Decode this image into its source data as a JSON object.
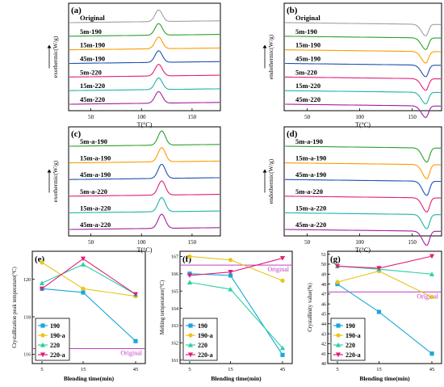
{
  "figure": {
    "panels": [
      {
        "id": "a",
        "label": "(a)",
        "kind": "curves",
        "peak": "up",
        "ylabel": "exothermic(W/g)",
        "xlabel": "T(°C)",
        "xticks": [
          50,
          100,
          150
        ],
        "xlim": [
          28,
          178
        ],
        "peak_x": 117,
        "series": [
          {
            "name": "Original",
            "color": "#a0a0a0"
          },
          {
            "name": "5m-190",
            "color": "#2ca02c"
          },
          {
            "name": "15m-190",
            "color": "#ff9a00"
          },
          {
            "name": "45m-190",
            "color": "#1f4fb4"
          },
          {
            "name": "5m-220",
            "color": "#e0207a"
          },
          {
            "name": "15m-220",
            "color": "#20b2aa"
          },
          {
            "name": "45m-220",
            "color": "#a020a0"
          }
        ]
      },
      {
        "id": "b",
        "label": "(b)",
        "kind": "curves",
        "peak": "down",
        "ylabel": "endothermic(W/g)",
        "xlabel": "T(°C)",
        "xticks": [
          50,
          100,
          150
        ],
        "xlim": [
          28,
          178
        ],
        "peak_x": 163,
        "series": [
          {
            "name": "Original",
            "color": "#a0a0a0"
          },
          {
            "name": "5m-190",
            "color": "#2ca02c"
          },
          {
            "name": "15m-190",
            "color": "#ff9a00"
          },
          {
            "name": "45m-190",
            "color": "#1f4fb4"
          },
          {
            "name": "5m-220",
            "color": "#e0207a"
          },
          {
            "name": "15m-220",
            "color": "#20b2aa"
          },
          {
            "name": "45m-220",
            "color": "#a020a0"
          }
        ]
      },
      {
        "id": "c",
        "label": "(c)",
        "kind": "curves",
        "peak": "up",
        "ylabel": "exothermic(W/g)",
        "xlabel": "T(°C)",
        "xticks": [
          50,
          100,
          150
        ],
        "xlim": [
          28,
          178
        ],
        "peak_x": 120,
        "series": [
          {
            "name": "5m-a-190",
            "color": "#2ca02c"
          },
          {
            "name": "15m-a-190",
            "color": "#ff9a00"
          },
          {
            "name": "45m-a-190",
            "color": "#1f4fb4"
          },
          {
            "name": "5m-a-220",
            "color": "#e0207a"
          },
          {
            "name": "15m-a-220",
            "color": "#20b2aa"
          },
          {
            "name": "45m-a-220",
            "color": "#a020a0"
          }
        ]
      },
      {
        "id": "d",
        "label": "(d)",
        "kind": "curves",
        "peak": "down",
        "ylabel": "endothermic(W/g)",
        "xlabel": "T(°C)",
        "xticks": [
          50,
          100,
          150
        ],
        "xlim": [
          28,
          178
        ],
        "peak_x": 164,
        "series": [
          {
            "name": "5m-a-190",
            "color": "#2ca02c"
          },
          {
            "name": "15m-a-190",
            "color": "#ff9a00"
          },
          {
            "name": "45m-a-190",
            "color": "#1f4fb4"
          },
          {
            "name": "5m-a-220",
            "color": "#e0207a"
          },
          {
            "name": "15m-a-220",
            "color": "#20b2aa"
          },
          {
            "name": "45m-a-220",
            "color": "#a020a0"
          }
        ]
      },
      {
        "id": "e",
        "label": "(e)",
        "kind": "lines",
        "ylabel": "Crystallization peak temperature(°C)",
        "xlabel": "Blending time(min)",
        "x": [
          5,
          15,
          45
        ],
        "ylim": [
          115.5,
          121.5
        ],
        "yticks": [
          116,
          118,
          120
        ],
        "reference": {
          "value": 116.3,
          "label": "Original"
        },
        "series": [
          {
            "name": "190",
            "color": "#1aa7d8",
            "marker": "square",
            "values": [
              119.5,
              119.3,
              116.7
            ]
          },
          {
            "name": "190-a",
            "color": "#e6c619",
            "marker": "circle",
            "values": [
              120.9,
              119.5,
              119.1
            ]
          },
          {
            "name": "220",
            "color": "#2bd1a1",
            "marker": "triangle",
            "values": [
              119.8,
              120.8,
              119.2
            ]
          },
          {
            "name": "220-a",
            "color": "#e0207a",
            "marker": "triangle-down",
            "values": [
              119.5,
              121.1,
              119.2
            ]
          }
        ]
      },
      {
        "id": "f",
        "label": "(f)",
        "kind": "lines",
        "ylabel": "Melting temperature(°C)",
        "xlabel": "Blending time(min)",
        "x": [
          5,
          15,
          45
        ],
        "ylim": [
          160.8,
          167.3
        ],
        "yticks": [
          161,
          162,
          163,
          164,
          165,
          166,
          167
        ],
        "reference": {
          "value": 166.5,
          "label": "Original"
        },
        "series": [
          {
            "name": "190",
            "color": "#1aa7d8",
            "marker": "square",
            "values": [
              166.0,
              165.9,
              161.3
            ]
          },
          {
            "name": "190-a",
            "color": "#e6c619",
            "marker": "circle",
            "values": [
              167.0,
              166.8,
              165.6
            ]
          },
          {
            "name": "220",
            "color": "#2bd1a1",
            "marker": "triangle",
            "values": [
              165.5,
              165.1,
              161.7
            ]
          },
          {
            "name": "220-a",
            "color": "#e0207a",
            "marker": "triangle-down",
            "values": [
              165.9,
              166.1,
              166.9
            ]
          }
        ]
      },
      {
        "id": "g",
        "label": "(g)",
        "kind": "lines",
        "ylabel": "Crystallinity value(%)",
        "xlabel": "Blending time(min)",
        "x": [
          5,
          15,
          45
        ],
        "ylim": [
          40,
          51.3
        ],
        "yticks": [
          40,
          41,
          42,
          43,
          44,
          45,
          46,
          47,
          48,
          49,
          50,
          51
        ],
        "reference": {
          "value": 47.2,
          "label": "Original"
        },
        "series": [
          {
            "name": "190",
            "color": "#1aa7d8",
            "marker": "square",
            "values": [
              48.0,
              45.2,
              41.0
            ]
          },
          {
            "name": "190-a",
            "color": "#e6c619",
            "marker": "circle",
            "values": [
              48.2,
              49.3,
              46.7
            ]
          },
          {
            "name": "220",
            "color": "#2bd1a1",
            "marker": "triangle",
            "values": [
              49.8,
              49.5,
              49.0
            ]
          },
          {
            "name": "220-a",
            "color": "#e0207a",
            "marker": "triangle-down",
            "values": [
              49.8,
              49.6,
              50.8
            ]
          }
        ]
      }
    ]
  },
  "chart_data": [
    {
      "type": "line",
      "panel": "(e)",
      "x": [
        5,
        15,
        45
      ],
      "xlabel": "Blending time(min)",
      "ylabel": "Crystallization peak temperature(°C)",
      "ylim": [
        115.5,
        121.5
      ],
      "series": [
        {
          "name": "190",
          "values": [
            119.5,
            119.3,
            116.7
          ]
        },
        {
          "name": "190-a",
          "values": [
            120.9,
            119.5,
            119.1
          ]
        },
        {
          "name": "220",
          "values": [
            119.8,
            120.8,
            119.2
          ]
        },
        {
          "name": "220-a",
          "values": [
            119.5,
            121.1,
            119.2
          ]
        }
      ],
      "reference": {
        "label": "Original",
        "value": 116.3
      }
    },
    {
      "type": "line",
      "panel": "(f)",
      "x": [
        5,
        15,
        45
      ],
      "xlabel": "Blending time(min)",
      "ylabel": "Melting temperature(°C)",
      "ylim": [
        160.8,
        167.3
      ],
      "series": [
        {
          "name": "190",
          "values": [
            166.0,
            165.9,
            161.3
          ]
        },
        {
          "name": "190-a",
          "values": [
            167.0,
            166.8,
            165.6
          ]
        },
        {
          "name": "220",
          "values": [
            165.5,
            165.1,
            161.7
          ]
        },
        {
          "name": "220-a",
          "values": [
            165.9,
            166.1,
            166.9
          ]
        }
      ],
      "reference": {
        "label": "Original",
        "value": 166.5
      }
    },
    {
      "type": "line",
      "panel": "(g)",
      "x": [
        5,
        15,
        45
      ],
      "xlabel": "Blending time(min)",
      "ylabel": "Crystallinity value(%)",
      "ylim": [
        40,
        51.3
      ],
      "series": [
        {
          "name": "190",
          "values": [
            48.0,
            45.2,
            41.0
          ]
        },
        {
          "name": "190-a",
          "values": [
            48.2,
            49.3,
            46.7
          ]
        },
        {
          "name": "220",
          "values": [
            49.8,
            49.5,
            49.0
          ]
        },
        {
          "name": "220-a",
          "values": [
            49.8,
            49.6,
            50.8
          ]
        }
      ],
      "reference": {
        "label": "Original",
        "value": 47.2
      }
    }
  ]
}
